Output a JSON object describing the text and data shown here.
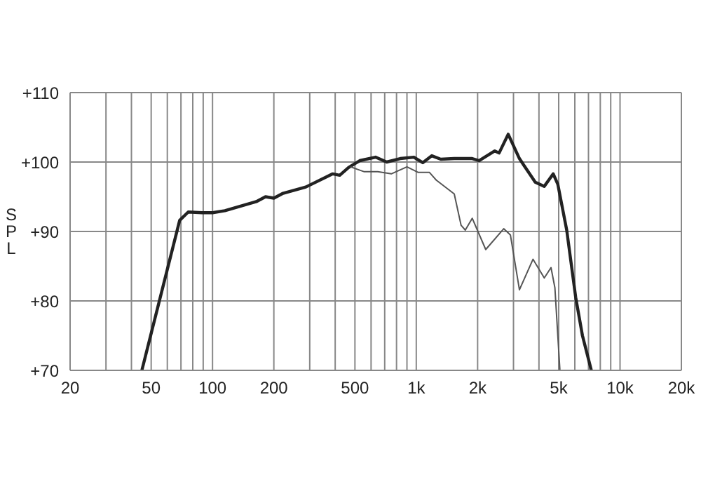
{
  "chart_data": {
    "type": "line",
    "ylabel": "SPL",
    "log": "x",
    "grid": true,
    "xlim": [
      20,
      20000
    ],
    "ylim": [
      70,
      110
    ],
    "xticks": [
      {
        "value": 20,
        "label": "20"
      },
      {
        "value": 30,
        "label": null
      },
      {
        "value": 40,
        "label": null
      },
      {
        "value": 50,
        "label": "50"
      },
      {
        "value": 60,
        "label": null
      },
      {
        "value": 70,
        "label": null
      },
      {
        "value": 80,
        "label": null
      },
      {
        "value": 90,
        "label": null
      },
      {
        "value": 100,
        "label": "100"
      },
      {
        "value": 200,
        "label": "200"
      },
      {
        "value": 300,
        "label": null
      },
      {
        "value": 400,
        "label": null
      },
      {
        "value": 500,
        "label": "500"
      },
      {
        "value": 600,
        "label": null
      },
      {
        "value": 700,
        "label": null
      },
      {
        "value": 800,
        "label": null
      },
      {
        "value": 900,
        "label": null
      },
      {
        "value": 1000,
        "label": "1k"
      },
      {
        "value": 2000,
        "label": "2k"
      },
      {
        "value": 3000,
        "label": null
      },
      {
        "value": 4000,
        "label": null
      },
      {
        "value": 5000,
        "label": "5k"
      },
      {
        "value": 6000,
        "label": null
      },
      {
        "value": 7000,
        "label": null
      },
      {
        "value": 8000,
        "label": null
      },
      {
        "value": 9000,
        "label": null
      },
      {
        "value": 10000,
        "label": "10k"
      },
      {
        "value": 20000,
        "label": "20k"
      }
    ],
    "yticks": [
      {
        "value": 70,
        "label": "+70"
      },
      {
        "value": 80,
        "label": "+80"
      },
      {
        "value": 90,
        "label": "+90"
      },
      {
        "value": 100,
        "label": "+100"
      },
      {
        "value": 110,
        "label": "+110"
      }
    ],
    "series": [
      {
        "color": "#222222",
        "x": [
          45,
          69,
          76,
          89,
          100,
          115,
          164,
          182,
          200,
          222,
          287,
          389,
          421,
          465,
          528,
          631,
          716,
          834,
          973,
          1076,
          1192,
          1319,
          1536,
          1882,
          2032,
          2428,
          2550,
          2826,
          3208,
          3380,
          3836,
          4248,
          4700,
          4950,
          5474,
          6060,
          6540,
          7230
        ],
        "values": [
          70,
          91.6,
          92.8,
          92.7,
          92.7,
          93,
          94.3,
          95,
          94.8,
          95.5,
          96.4,
          98.3,
          98.1,
          99.2,
          100.2,
          100.7,
          100,
          100.5,
          100.7,
          99.9,
          100.9,
          100.4,
          100.5,
          100.5,
          100.2,
          101.6,
          101.3,
          104,
          100.5,
          99.5,
          97.1,
          96.5,
          98.3,
          96.8,
          90.2,
          80.5,
          75,
          70
        ]
      },
      {
        "color": "#555555",
        "x": [
          476,
          556,
          647,
          754,
          900,
          1023,
          1161,
          1253,
          1536,
          1659,
          1740,
          1882,
          2192,
          2686,
          2897,
          3208,
          3740,
          4248,
          4584,
          4790,
          5070
        ],
        "values": [
          99.3,
          98.6,
          98.6,
          98.3,
          99.3,
          98.5,
          98.5,
          97.4,
          95.4,
          90.9,
          90.2,
          91.9,
          87.4,
          90.4,
          89.5,
          81.6,
          86,
          83.3,
          84.8,
          81.9,
          70
        ]
      }
    ]
  }
}
